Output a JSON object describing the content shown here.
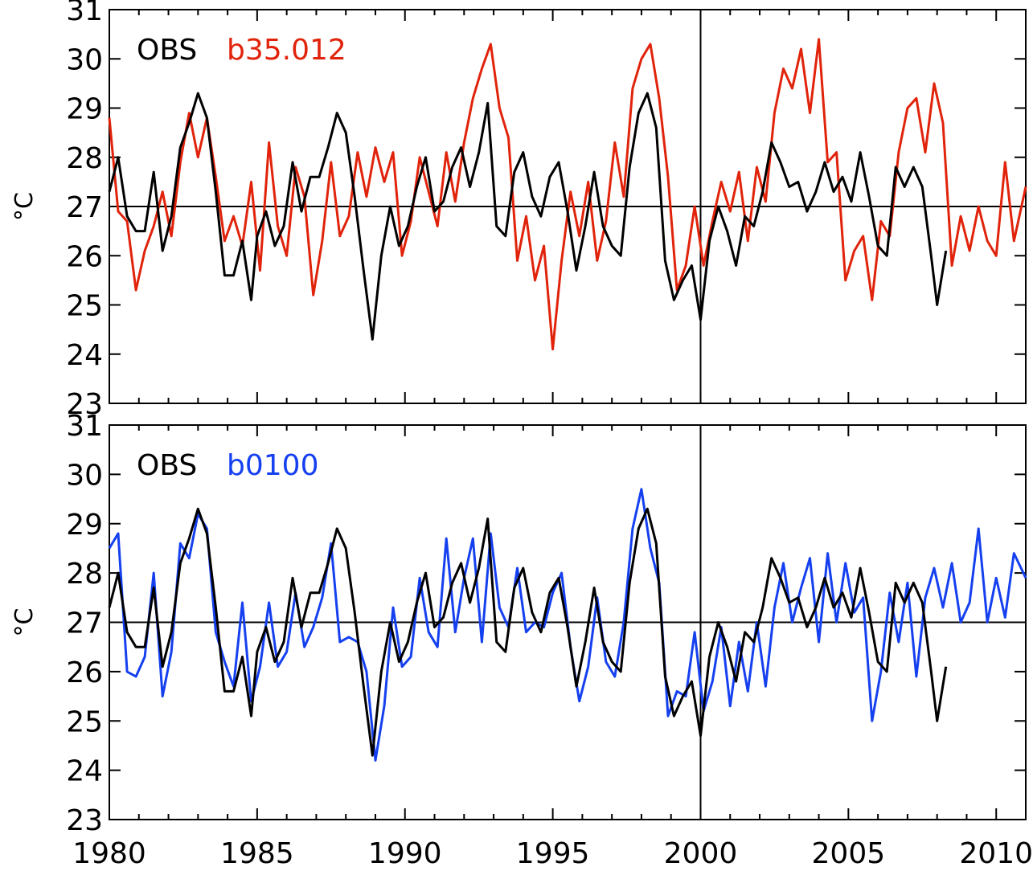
{
  "chart_data": [
    {
      "type": "line",
      "ylabel": "°C",
      "ylim": [
        23,
        31
      ],
      "xlim": [
        1980,
        2011
      ],
      "yticks": [
        23,
        24,
        25,
        26,
        27,
        28,
        29,
        30,
        31
      ],
      "reference_line_y": 27,
      "reference_line_x": 2000,
      "legend": "top-left",
      "series": [
        {
          "name": "OBS",
          "color": "#000000",
          "x": [
            1980.0,
            1980.3,
            1980.6,
            1980.9,
            1981.2,
            1981.5,
            1981.8,
            1982.1,
            1982.4,
            1982.7,
            1983.0,
            1983.3,
            1983.6,
            1983.9,
            1984.2,
            1984.5,
            1984.8,
            1985.0,
            1985.3,
            1985.6,
            1985.9,
            1986.2,
            1986.5,
            1986.8,
            1987.1,
            1987.4,
            1987.7,
            1988.0,
            1988.3,
            1988.6,
            1988.9,
            1989.2,
            1989.5,
            1989.8,
            1990.1,
            1990.4,
            1990.7,
            1991.0,
            1991.3,
            1991.6,
            1991.9,
            1992.2,
            1992.5,
            1992.8,
            1993.1,
            1993.4,
            1993.7,
            1994.0,
            1994.3,
            1994.6,
            1994.9,
            1995.2,
            1995.5,
            1995.8,
            1996.1,
            1996.4,
            1996.7,
            1997.0,
            1997.3,
            1997.6,
            1997.9,
            1998.2,
            1998.5,
            1998.8,
            1999.1,
            1999.4,
            1999.7,
            2000.0,
            2000.3,
            2000.6,
            2000.9,
            2001.2,
            2001.5,
            2001.8,
            2002.1,
            2002.4,
            2002.7,
            2003.0,
            2003.3,
            2003.6,
            2003.9,
            2004.2,
            2004.5,
            2004.8,
            2005.1,
            2005.4,
            2005.7,
            2006.0,
            2006.3,
            2006.6,
            2006.9,
            2007.2,
            2007.5,
            2007.8,
            2008.0,
            2008.3
          ],
          "values": [
            27.3,
            28.0,
            26.8,
            26.5,
            26.5,
            27.7,
            26.1,
            26.8,
            28.2,
            28.7,
            29.3,
            28.8,
            27.3,
            25.6,
            25.6,
            26.3,
            25.1,
            26.4,
            26.9,
            26.2,
            26.6,
            27.9,
            26.9,
            27.6,
            27.6,
            28.2,
            28.9,
            28.5,
            27.2,
            25.7,
            24.3,
            26.0,
            27.0,
            26.2,
            26.6,
            27.4,
            28.0,
            26.9,
            27.1,
            27.8,
            28.2,
            27.4,
            28.1,
            29.1,
            26.6,
            26.4,
            27.7,
            28.1,
            27.2,
            26.8,
            27.6,
            27.9,
            26.9,
            25.7,
            26.6,
            27.7,
            26.6,
            26.2,
            26.0,
            27.8,
            28.9,
            29.3,
            28.6,
            25.9,
            25.1,
            25.5,
            25.8,
            24.7,
            26.3,
            27.0,
            26.5,
            25.8,
            26.8,
            26.6,
            27.3,
            28.3,
            27.9,
            27.4,
            27.5,
            26.9,
            27.3,
            27.9,
            27.3,
            27.6,
            27.1,
            28.1,
            27.2,
            26.2,
            26.0,
            27.8,
            27.4,
            27.8,
            27.4,
            26.0,
            25.0,
            26.1
          ]
        },
        {
          "name": "b35.012",
          "color": "#e0230a",
          "x": [
            1980.0,
            1980.3,
            1980.6,
            1980.9,
            1981.2,
            1981.5,
            1981.8,
            1982.1,
            1982.4,
            1982.7,
            1983.0,
            1983.3,
            1983.6,
            1983.9,
            1984.2,
            1984.5,
            1984.8,
            1985.1,
            1985.4,
            1985.7,
            1986.0,
            1986.3,
            1986.6,
            1986.9,
            1987.2,
            1987.5,
            1987.8,
            1988.1,
            1988.4,
            1988.7,
            1989.0,
            1989.3,
            1989.6,
            1989.9,
            1990.2,
            1990.5,
            1990.8,
            1991.1,
            1991.4,
            1991.7,
            1992.0,
            1992.3,
            1992.6,
            1992.9,
            1993.2,
            1993.5,
            1993.8,
            1994.1,
            1994.4,
            1994.7,
            1995.0,
            1995.3,
            1995.6,
            1995.9,
            1996.2,
            1996.5,
            1996.8,
            1997.1,
            1997.4,
            1997.7,
            1998.0,
            1998.3,
            1998.6,
            1998.9,
            1999.2,
            1999.5,
            1999.8,
            2000.1,
            2000.4,
            2000.7,
            2001.0,
            2001.3,
            2001.6,
            2001.9,
            2002.2,
            2002.5,
            2002.8,
            2003.1,
            2003.4,
            2003.7,
            2004.0,
            2004.3,
            2004.6,
            2004.9,
            2005.2,
            2005.5,
            2005.8,
            2006.1,
            2006.4,
            2006.7,
            2007.0,
            2007.3,
            2007.6,
            2007.9,
            2008.2,
            2008.5,
            2008.8,
            2009.1,
            2009.4,
            2009.7,
            2010.0,
            2010.3,
            2010.6,
            2011.0
          ],
          "values": [
            28.8,
            26.9,
            26.7,
            25.3,
            26.1,
            26.6,
            27.3,
            26.4,
            27.9,
            28.9,
            28.0,
            28.8,
            27.6,
            26.3,
            26.8,
            26.2,
            27.5,
            25.7,
            28.3,
            26.6,
            26.0,
            27.8,
            27.2,
            25.2,
            26.3,
            27.9,
            26.4,
            26.8,
            28.1,
            27.2,
            28.2,
            27.5,
            28.1,
            26.0,
            26.7,
            28.0,
            27.3,
            26.6,
            28.1,
            27.1,
            28.3,
            29.2,
            29.8,
            30.3,
            29.0,
            28.4,
            25.9,
            26.8,
            25.5,
            26.2,
            24.1,
            25.9,
            27.3,
            26.4,
            27.5,
            25.9,
            26.7,
            28.3,
            27.2,
            29.4,
            30.0,
            30.3,
            29.2,
            27.6,
            25.3,
            25.8,
            27.0,
            25.8,
            26.7,
            27.5,
            26.9,
            27.7,
            26.3,
            27.8,
            27.1,
            28.9,
            29.8,
            29.4,
            30.2,
            28.9,
            30.4,
            27.9,
            28.1,
            25.5,
            26.1,
            26.4,
            25.1,
            26.7,
            26.4,
            28.1,
            29.0,
            29.2,
            28.1,
            29.5,
            28.7,
            25.8,
            26.8,
            26.1,
            27.0,
            26.3,
            26.0,
            27.9,
            26.3,
            27.4
          ]
        }
      ]
    },
    {
      "type": "line",
      "ylabel": "°C",
      "ylim": [
        23,
        31
      ],
      "xlim": [
        1980,
        2011
      ],
      "yticks": [
        23,
        24,
        25,
        26,
        27,
        28,
        29,
        30,
        31
      ],
      "xticks": [
        1980,
        1985,
        1990,
        1995,
        2000,
        2005,
        2010
      ],
      "reference_line_y": 27,
      "reference_line_x": 2000,
      "legend": "top-left",
      "series": [
        {
          "name": "OBS",
          "color": "#000000",
          "x": [
            1980.0,
            1980.3,
            1980.6,
            1980.9,
            1981.2,
            1981.5,
            1981.8,
            1982.1,
            1982.4,
            1982.7,
            1983.0,
            1983.3,
            1983.6,
            1983.9,
            1984.2,
            1984.5,
            1984.8,
            1985.0,
            1985.3,
            1985.6,
            1985.9,
            1986.2,
            1986.5,
            1986.8,
            1987.1,
            1987.4,
            1987.7,
            1988.0,
            1988.3,
            1988.6,
            1988.9,
            1989.2,
            1989.5,
            1989.8,
            1990.1,
            1990.4,
            1990.7,
            1991.0,
            1991.3,
            1991.6,
            1991.9,
            1992.2,
            1992.5,
            1992.8,
            1993.1,
            1993.4,
            1993.7,
            1994.0,
            1994.3,
            1994.6,
            1994.9,
            1995.2,
            1995.5,
            1995.8,
            1996.1,
            1996.4,
            1996.7,
            1997.0,
            1997.3,
            1997.6,
            1997.9,
            1998.2,
            1998.5,
            1998.8,
            1999.1,
            1999.4,
            1999.7,
            2000.0,
            2000.3,
            2000.6,
            2000.9,
            2001.2,
            2001.5,
            2001.8,
            2002.1,
            2002.4,
            2002.7,
            2003.0,
            2003.3,
            2003.6,
            2003.9,
            2004.2,
            2004.5,
            2004.8,
            2005.1,
            2005.4,
            2005.7,
            2006.0,
            2006.3,
            2006.6,
            2006.9,
            2007.2,
            2007.5,
            2007.8,
            2008.0,
            2008.3
          ],
          "values": [
            27.3,
            28.0,
            26.8,
            26.5,
            26.5,
            27.7,
            26.1,
            26.8,
            28.2,
            28.7,
            29.3,
            28.8,
            27.3,
            25.6,
            25.6,
            26.3,
            25.1,
            26.4,
            26.9,
            26.2,
            26.6,
            27.9,
            26.9,
            27.6,
            27.6,
            28.2,
            28.9,
            28.5,
            27.2,
            25.7,
            24.3,
            26.0,
            27.0,
            26.2,
            26.6,
            27.4,
            28.0,
            26.9,
            27.1,
            27.8,
            28.2,
            27.4,
            28.1,
            29.1,
            26.6,
            26.4,
            27.7,
            28.1,
            27.2,
            26.8,
            27.6,
            27.9,
            26.9,
            25.7,
            26.6,
            27.7,
            26.6,
            26.2,
            26.0,
            27.8,
            28.9,
            29.3,
            28.6,
            25.9,
            25.1,
            25.5,
            25.8,
            24.7,
            26.3,
            27.0,
            26.5,
            25.8,
            26.8,
            26.6,
            27.3,
            28.3,
            27.9,
            27.4,
            27.5,
            26.9,
            27.3,
            27.9,
            27.3,
            27.6,
            27.1,
            28.1,
            27.2,
            26.2,
            26.0,
            27.8,
            27.4,
            27.8,
            27.4,
            26.0,
            25.0,
            26.1
          ]
        },
        {
          "name": "b0100",
          "color": "#1540f0",
          "x": [
            1980.0,
            1980.3,
            1980.6,
            1980.9,
            1981.2,
            1981.5,
            1981.8,
            1982.1,
            1982.4,
            1982.7,
            1983.0,
            1983.3,
            1983.6,
            1983.9,
            1984.2,
            1984.5,
            1984.8,
            1985.1,
            1985.4,
            1985.7,
            1986.0,
            1986.3,
            1986.6,
            1986.9,
            1987.2,
            1987.5,
            1987.8,
            1988.1,
            1988.4,
            1988.7,
            1989.0,
            1989.3,
            1989.6,
            1989.9,
            1990.2,
            1990.5,
            1990.8,
            1991.1,
            1991.4,
            1991.7,
            1992.0,
            1992.3,
            1992.6,
            1992.9,
            1993.2,
            1993.5,
            1993.8,
            1994.1,
            1994.4,
            1994.7,
            1995.0,
            1995.3,
            1995.6,
            1995.9,
            1996.2,
            1996.5,
            1996.8,
            1997.1,
            1997.4,
            1997.7,
            1998.0,
            1998.3,
            1998.6,
            1998.9,
            1999.2,
            1999.5,
            1999.8,
            2000.1,
            2000.4,
            2000.7,
            2001.0,
            2001.3,
            2001.6,
            2001.9,
            2002.2,
            2002.5,
            2002.8,
            2003.1,
            2003.4,
            2003.7,
            2004.0,
            2004.3,
            2004.6,
            2004.9,
            2005.2,
            2005.5,
            2005.8,
            2006.1,
            2006.4,
            2006.7,
            2007.0,
            2007.3,
            2007.6,
            2007.9,
            2008.2,
            2008.5,
            2008.8,
            2009.1,
            2009.4,
            2009.7,
            2010.0,
            2010.3,
            2010.6,
            2011.0
          ],
          "values": [
            28.5,
            28.8,
            26.0,
            25.9,
            26.3,
            28.0,
            25.5,
            26.4,
            28.6,
            28.3,
            29.2,
            28.9,
            26.8,
            26.2,
            25.7,
            27.4,
            25.4,
            26.1,
            27.4,
            26.1,
            26.4,
            27.6,
            26.5,
            26.9,
            27.5,
            28.6,
            26.6,
            26.7,
            26.6,
            26.0,
            24.2,
            25.3,
            27.3,
            26.1,
            26.3,
            27.9,
            26.8,
            26.5,
            28.7,
            26.8,
            27.9,
            28.7,
            26.6,
            28.8,
            27.3,
            26.9,
            28.1,
            26.8,
            27.0,
            26.9,
            27.6,
            28.0,
            26.5,
            25.4,
            26.1,
            27.5,
            26.2,
            25.9,
            27.0,
            28.9,
            29.7,
            28.5,
            27.8,
            25.1,
            25.6,
            25.5,
            26.8,
            25.2,
            25.8,
            26.9,
            25.3,
            26.6,
            25.6,
            27.0,
            25.7,
            27.3,
            28.2,
            27.0,
            27.7,
            28.3,
            26.6,
            28.4,
            27.0,
            28.2,
            27.2,
            27.5,
            25.0,
            26.0,
            27.6,
            26.6,
            27.8,
            25.9,
            27.5,
            28.1,
            27.3,
            28.2,
            27.0,
            27.4,
            28.9,
            27.0,
            27.9,
            27.1,
            28.4,
            27.9
          ]
        }
      ]
    }
  ]
}
